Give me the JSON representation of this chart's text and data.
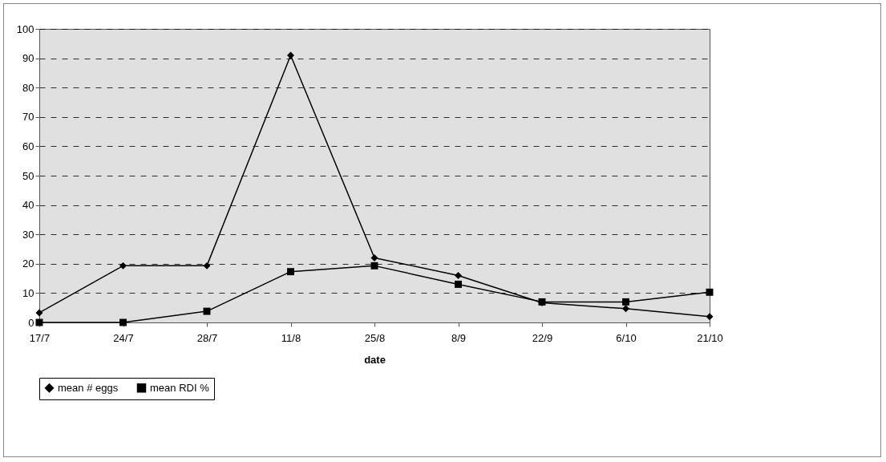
{
  "chart_data": {
    "type": "line",
    "xlabel": "date",
    "categories": [
      "17/7",
      "24/7",
      "28/7",
      "11/8",
      "25/8",
      "8/9",
      "22/9",
      "6/10",
      "21/10"
    ],
    "series": [
      {
        "name": "mean # eggs",
        "color": "#000000",
        "marker": "diamond",
        "values": [
          3.3,
          19.3,
          19.3,
          91,
          22,
          16,
          6.7,
          4.7,
          2
        ]
      },
      {
        "name": "mean RDI %",
        "color": "#000000",
        "marker": "square",
        "values": [
          0,
          0,
          3.8,
          17.3,
          19.3,
          13,
          7,
          7,
          10.3
        ]
      }
    ],
    "ylim": [
      0,
      100
    ],
    "yticks": [
      0,
      10,
      20,
      30,
      40,
      50,
      60,
      70,
      80,
      90,
      100
    ],
    "grid": "y",
    "legend": "bottom",
    "line_style": "solid"
  }
}
